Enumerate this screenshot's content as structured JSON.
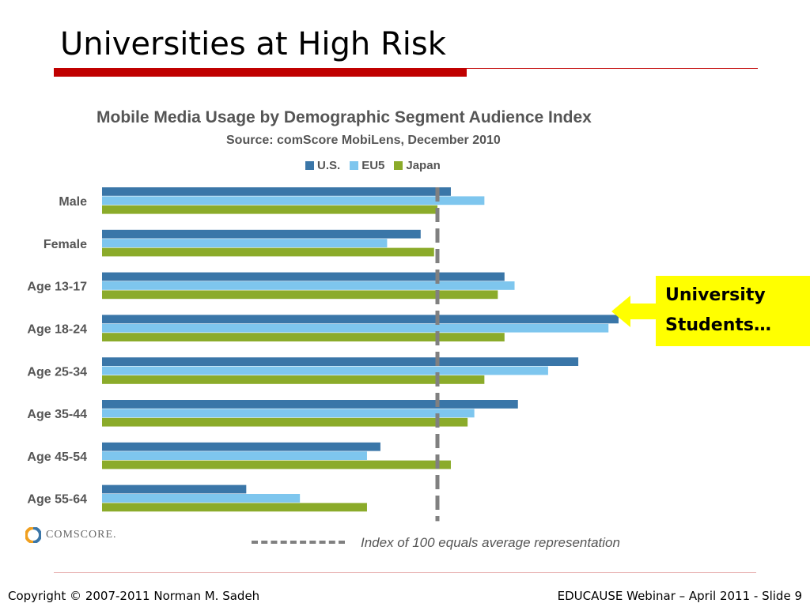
{
  "slide": {
    "title": "Universities at High Risk"
  },
  "footer": {
    "left": "Copyright © 2007-2011 Norman M. Sadeh",
    "right": "EDUCAUSE Webinar – April 2011 - Slide 9"
  },
  "callout": {
    "line1": "University",
    "line2": "Students…"
  },
  "logo": {
    "text": "COMSCORE."
  },
  "colors": {
    "accent_red": "#c00000",
    "us": "#3a76a8",
    "eu5": "#7ec6ee",
    "japan": "#8bab2a",
    "callout": "#ffff00",
    "reference_line": "#808080"
  },
  "chart_data": {
    "type": "bar",
    "orientation": "horizontal",
    "title": "Mobile Media Usage by Demographic Segment Audience Index",
    "subtitle": "Source: comScore MobiLens, December 2010",
    "categories": [
      "Male",
      "Female",
      "Age 13-17",
      "Age 18-24",
      "Age 25-34",
      "Age 35-44",
      "Age 45-54",
      "Age 55-64"
    ],
    "series": [
      {
        "name": "U.S.",
        "values": [
          104,
          95,
          120,
          154,
          142,
          124,
          83,
          43
        ]
      },
      {
        "name": "EU5",
        "values": [
          114,
          85,
          123,
          151,
          133,
          111,
          79,
          59
        ]
      },
      {
        "name": "Japan",
        "values": [
          100,
          99,
          118,
          120,
          114,
          109,
          104,
          79
        ]
      }
    ],
    "reference_line": {
      "value": 100,
      "label": "Index of 100 equals average representation"
    },
    "xlim": [
      0,
      160
    ],
    "legend_position": "top",
    "grid": false
  }
}
